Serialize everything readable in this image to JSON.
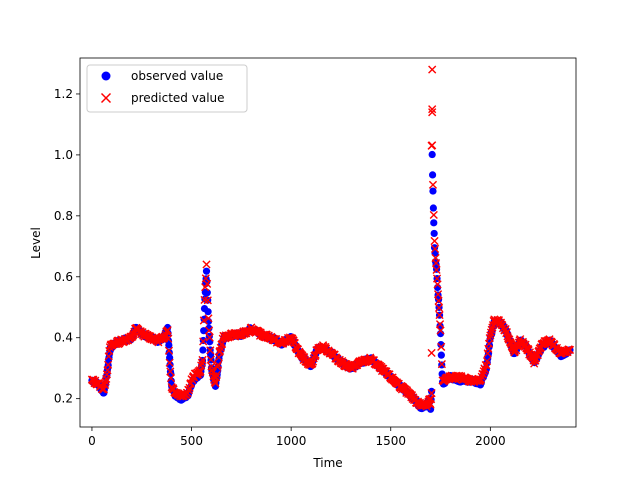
{
  "chart_data": {
    "type": "scatter",
    "xlabel": "Time",
    "ylabel": "Level",
    "xlim": [
      -60,
      2430
    ],
    "ylim": [
      0.107,
      1.318
    ],
    "x_ticks": [
      0,
      500,
      1000,
      1500,
      2000
    ],
    "y_ticks": [
      0.2,
      0.4,
      0.6,
      0.8,
      1.0,
      1.2
    ],
    "x_tick_labels": [
      "0",
      "500",
      "1000",
      "1500",
      "2000"
    ],
    "y_tick_labels": [
      "0.2",
      "0.4",
      "0.6",
      "0.8",
      "1.0",
      "1.2"
    ],
    "grid": false,
    "legend_position": "top-left",
    "series": [
      {
        "name": "observed value",
        "color": "#0000ff",
        "marker": "circle",
        "anchors": [
          [
            0,
            0.26
          ],
          [
            30,
            0.25
          ],
          [
            60,
            0.22
          ],
          [
            75,
            0.28
          ],
          [
            90,
            0.36
          ],
          [
            110,
            0.38
          ],
          [
            150,
            0.39
          ],
          [
            200,
            0.4
          ],
          [
            220,
            0.43
          ],
          [
            260,
            0.41
          ],
          [
            300,
            0.4
          ],
          [
            330,
            0.39
          ],
          [
            360,
            0.4
          ],
          [
            380,
            0.43
          ],
          [
            390,
            0.33
          ],
          [
            400,
            0.24
          ],
          [
            420,
            0.21
          ],
          [
            450,
            0.2
          ],
          [
            480,
            0.21
          ],
          [
            500,
            0.25
          ],
          [
            520,
            0.27
          ],
          [
            545,
            0.28
          ],
          [
            555,
            0.32
          ],
          [
            565,
            0.5
          ],
          [
            575,
            0.62
          ],
          [
            585,
            0.45
          ],
          [
            600,
            0.3
          ],
          [
            620,
            0.24
          ],
          [
            640,
            0.34
          ],
          [
            660,
            0.4
          ],
          [
            700,
            0.41
          ],
          [
            750,
            0.41
          ],
          [
            800,
            0.43
          ],
          [
            850,
            0.41
          ],
          [
            900,
            0.4
          ],
          [
            950,
            0.38
          ],
          [
            1000,
            0.4
          ],
          [
            1050,
            0.34
          ],
          [
            1100,
            0.31
          ],
          [
            1130,
            0.36
          ],
          [
            1160,
            0.37
          ],
          [
            1200,
            0.35
          ],
          [
            1250,
            0.32
          ],
          [
            1300,
            0.3
          ],
          [
            1350,
            0.32
          ],
          [
            1400,
            0.33
          ],
          [
            1450,
            0.3
          ],
          [
            1500,
            0.27
          ],
          [
            1550,
            0.24
          ],
          [
            1600,
            0.21
          ],
          [
            1630,
            0.19
          ],
          [
            1650,
            0.17
          ],
          [
            1680,
            0.18
          ],
          [
            1695,
            0.2
          ],
          [
            1700,
            0.17
          ],
          [
            1705,
            0.22
          ],
          [
            1708,
            1.0
          ],
          [
            1712,
            0.88
          ],
          [
            1716,
            0.78
          ],
          [
            1720,
            0.7
          ],
          [
            1725,
            0.65
          ],
          [
            1730,
            0.62
          ],
          [
            1735,
            0.57
          ],
          [
            1740,
            0.52
          ],
          [
            1745,
            0.47
          ],
          [
            1750,
            0.41
          ],
          [
            1760,
            0.25
          ],
          [
            1800,
            0.27
          ],
          [
            1850,
            0.26
          ],
          [
            1900,
            0.26
          ],
          [
            1950,
            0.25
          ],
          [
            1980,
            0.3
          ],
          [
            2000,
            0.4
          ],
          [
            2020,
            0.45
          ],
          [
            2050,
            0.45
          ],
          [
            2080,
            0.42
          ],
          [
            2120,
            0.35
          ],
          [
            2150,
            0.39
          ],
          [
            2180,
            0.37
          ],
          [
            2220,
            0.32
          ],
          [
            2260,
            0.37
          ],
          [
            2300,
            0.39
          ],
          [
            2350,
            0.34
          ],
          [
            2400,
            0.36
          ]
        ]
      },
      {
        "name": "predicted value",
        "color": "#ff0000",
        "marker": "x",
        "anchors": [
          [
            0,
            0.26
          ],
          [
            30,
            0.25
          ],
          [
            60,
            0.23
          ],
          [
            75,
            0.28
          ],
          [
            90,
            0.37
          ],
          [
            110,
            0.38
          ],
          [
            150,
            0.39
          ],
          [
            200,
            0.4
          ],
          [
            220,
            0.43
          ],
          [
            260,
            0.41
          ],
          [
            300,
            0.4
          ],
          [
            330,
            0.39
          ],
          [
            360,
            0.4
          ],
          [
            380,
            0.43
          ],
          [
            390,
            0.32
          ],
          [
            400,
            0.24
          ],
          [
            420,
            0.22
          ],
          [
            450,
            0.21
          ],
          [
            480,
            0.22
          ],
          [
            500,
            0.26
          ],
          [
            520,
            0.28
          ],
          [
            545,
            0.29
          ],
          [
            555,
            0.33
          ],
          [
            565,
            0.52
          ],
          [
            575,
            0.64
          ],
          [
            585,
            0.46
          ],
          [
            600,
            0.3
          ],
          [
            620,
            0.25
          ],
          [
            640,
            0.35
          ],
          [
            660,
            0.4
          ],
          [
            700,
            0.41
          ],
          [
            750,
            0.41
          ],
          [
            800,
            0.43
          ],
          [
            850,
            0.41
          ],
          [
            900,
            0.4
          ],
          [
            950,
            0.38
          ],
          [
            1000,
            0.4
          ],
          [
            1050,
            0.34
          ],
          [
            1100,
            0.31
          ],
          [
            1130,
            0.36
          ],
          [
            1160,
            0.37
          ],
          [
            1200,
            0.35
          ],
          [
            1250,
            0.32
          ],
          [
            1300,
            0.3
          ],
          [
            1350,
            0.32
          ],
          [
            1400,
            0.33
          ],
          [
            1450,
            0.3
          ],
          [
            1500,
            0.27
          ],
          [
            1550,
            0.24
          ],
          [
            1600,
            0.21
          ],
          [
            1630,
            0.19
          ],
          [
            1650,
            0.18
          ],
          [
            1680,
            0.18
          ],
          [
            1695,
            0.2
          ],
          [
            1700,
            0.18
          ],
          [
            1705,
            0.22
          ],
          [
            1708,
            1.03
          ],
          [
            1712,
            0.9
          ],
          [
            1716,
            0.8
          ],
          [
            1720,
            0.72
          ],
          [
            1725,
            0.66
          ],
          [
            1730,
            0.62
          ],
          [
            1735,
            0.57
          ],
          [
            1740,
            0.52
          ],
          [
            1745,
            0.47
          ],
          [
            1750,
            0.42
          ],
          [
            1760,
            0.26
          ],
          [
            1800,
            0.27
          ],
          [
            1850,
            0.27
          ],
          [
            1900,
            0.26
          ],
          [
            1950,
            0.26
          ],
          [
            1980,
            0.31
          ],
          [
            2000,
            0.41
          ],
          [
            2020,
            0.46
          ],
          [
            2050,
            0.45
          ],
          [
            2080,
            0.42
          ],
          [
            2120,
            0.35
          ],
          [
            2150,
            0.39
          ],
          [
            2180,
            0.37
          ],
          [
            2220,
            0.32
          ],
          [
            2260,
            0.38
          ],
          [
            2300,
            0.39
          ],
          [
            2350,
            0.35
          ],
          [
            2400,
            0.36
          ]
        ],
        "outliers": [
          [
            1708,
            1.28
          ],
          [
            1708,
            1.15
          ],
          [
            1708,
            1.14
          ],
          [
            1705,
            1.03
          ],
          [
            1705,
            0.35
          ]
        ]
      }
    ]
  }
}
